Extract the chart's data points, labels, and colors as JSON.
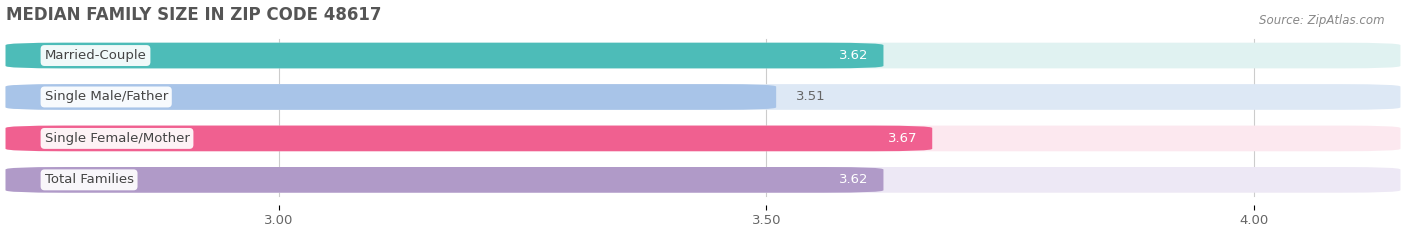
{
  "title": "MEDIAN FAMILY SIZE IN ZIP CODE 48617",
  "source": "Source: ZipAtlas.com",
  "categories": [
    "Married-Couple",
    "Single Male/Father",
    "Single Female/Mother",
    "Total Families"
  ],
  "values": [
    3.62,
    3.51,
    3.67,
    3.62
  ],
  "bar_colors": [
    "#4dbcb8",
    "#a8c4e8",
    "#f06090",
    "#b09ac8"
  ],
  "bar_bg_colors": [
    "#e0f2f1",
    "#dde8f5",
    "#fce8ef",
    "#ede8f5"
  ],
  "xlim_data": [
    2.72,
    4.15
  ],
  "xmin": 2.72,
  "xmax": 4.15,
  "xticks": [
    3.0,
    3.5,
    4.0
  ],
  "xtick_labels": [
    "3.00",
    "3.50",
    "4.00"
  ],
  "label_fontsize": 9.5,
  "value_fontsize": 9.5,
  "title_fontsize": 12,
  "background_color": "#ffffff",
  "grid_color": "#cccccc",
  "title_color": "#555555",
  "source_color": "#888888",
  "value_inside_color": "#ffffff",
  "value_outside_color": "#666666"
}
